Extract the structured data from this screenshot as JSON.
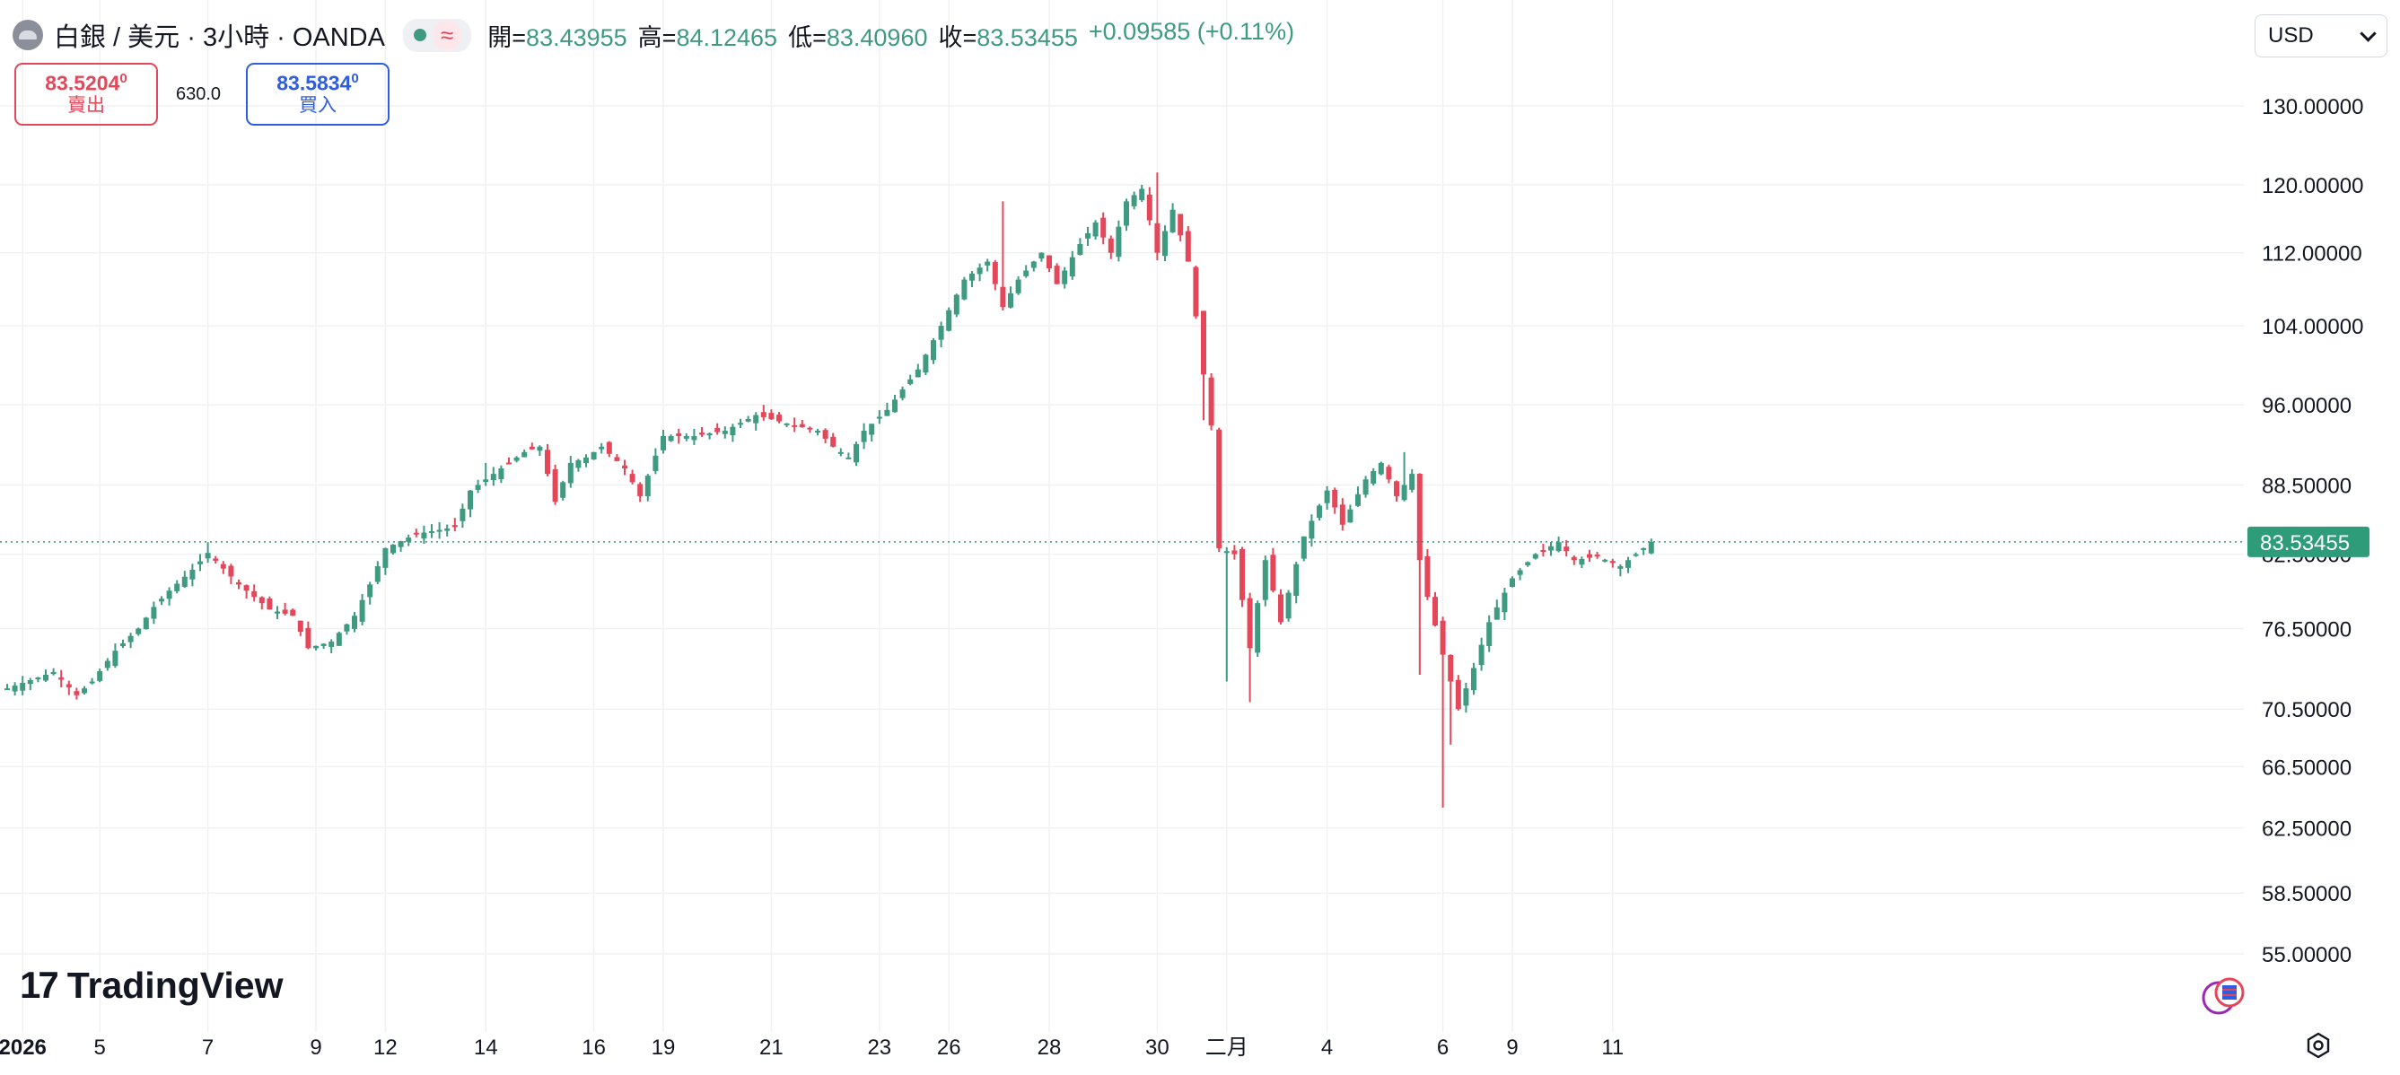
{
  "header": {
    "symbol_title": "白銀 / 美元 · 3小時 · OANDA",
    "status_icon": "market-open-dot",
    "wave_glyph": "≈",
    "ohlc": {
      "open_label": "開=",
      "open": "83.43955",
      "high_label": "高=",
      "high": "84.12465",
      "low_label": "低=",
      "low": "83.40960",
      "close_label": "收=",
      "close": "83.53455",
      "change": "+0.09585 (+0.11%)"
    }
  },
  "trade": {
    "sell_price": "83.5204",
    "sell_price_sup": "0",
    "sell_label": "賣出",
    "spread": "630.0",
    "buy_price": "83.5834",
    "buy_price_sup": "0",
    "buy_label": "買入"
  },
  "currency": {
    "selected": "USD"
  },
  "branding": {
    "logo_text": "TradingView"
  },
  "colors": {
    "up": "#3e9a80",
    "down": "#e5475a",
    "grid": "#f0f1f3",
    "price_line": "#2f9c79"
  },
  "chart_data": {
    "type": "candlestick",
    "series_name": "白銀 / 美元",
    "interval": "3小時",
    "last_price": 83.53455,
    "last_price_label": "83.53455",
    "scale": "log",
    "ylim": [
      52.5,
      136
    ],
    "ytick_values": [
      130,
      120,
      112,
      104,
      96,
      88.5,
      82.5,
      76.5,
      70.5,
      66.5,
      62.5,
      58.5,
      55
    ],
    "yticks": [
      "130.00000",
      "120.00000",
      "112.00000",
      "104.00000",
      "96.00000",
      "88.50000",
      "82.50000",
      "76.50000",
      "70.50000",
      "66.50000",
      "62.50000",
      "58.50000",
      "55.00000"
    ],
    "xticks": [
      {
        "label": "2026",
        "bar": 2,
        "bold": true
      },
      {
        "label": "5",
        "bar": 12
      },
      {
        "label": "7",
        "bar": 26
      },
      {
        "label": "9",
        "bar": 40
      },
      {
        "label": "12",
        "bar": 49
      },
      {
        "label": "14",
        "bar": 62
      },
      {
        "label": "16",
        "bar": 76
      },
      {
        "label": "19",
        "bar": 85
      },
      {
        "label": "21",
        "bar": 99
      },
      {
        "label": "23",
        "bar": 113
      },
      {
        "label": "26",
        "bar": 122
      },
      {
        "label": "28",
        "bar": 135
      },
      {
        "label": "30",
        "bar": 149
      },
      {
        "label": "二月",
        "bar": 158
      },
      {
        "label": "4",
        "bar": 171
      },
      {
        "label": "6",
        "bar": 186
      },
      {
        "label": "9",
        "bar": 195
      },
      {
        "label": "11",
        "bar": 208
      }
    ],
    "grid": true,
    "anchors": [
      [
        0,
        72.0
      ],
      [
        6,
        73.2
      ],
      [
        9,
        71.5
      ],
      [
        11,
        72.5
      ],
      [
        14,
        74.8
      ],
      [
        17,
        76.5
      ],
      [
        19,
        78.2
      ],
      [
        21,
        79.5
      ],
      [
        24,
        81.2
      ],
      [
        26,
        82.6
      ],
      [
        30,
        80.0
      ],
      [
        34,
        78.0
      ],
      [
        37,
        77.5
      ],
      [
        39,
        75.0
      ],
      [
        42,
        75.5
      ],
      [
        45,
        77.5
      ],
      [
        47,
        80.0
      ],
      [
        49,
        83.0
      ],
      [
        53,
        84.2
      ],
      [
        58,
        84.8
      ],
      [
        60,
        88.0
      ],
      [
        63,
        89.5
      ],
      [
        67,
        91.5
      ],
      [
        69,
        92.0
      ],
      [
        71,
        87.0
      ],
      [
        73,
        90.5
      ],
      [
        75,
        91.0
      ],
      [
        77,
        92.0
      ],
      [
        80,
        90.0
      ],
      [
        82,
        87.5
      ],
      [
        85,
        93.0
      ],
      [
        89,
        93.0
      ],
      [
        93,
        93.5
      ],
      [
        97,
        95.0
      ],
      [
        102,
        94.0
      ],
      [
        105,
        93.5
      ],
      [
        107,
        92.0
      ],
      [
        109,
        91.0
      ],
      [
        111,
        93.5
      ],
      [
        114,
        95.5
      ],
      [
        118,
        99.5
      ],
      [
        121,
        104.0
      ],
      [
        124,
        109.0
      ],
      [
        127,
        111.0
      ],
      [
        129,
        106.0
      ],
      [
        131,
        109.0
      ],
      [
        134,
        112.0
      ],
      [
        136,
        108.5
      ],
      [
        139,
        113.0
      ],
      [
        141,
        115.5
      ],
      [
        143,
        112.0
      ],
      [
        145,
        118.0
      ],
      [
        147,
        119.5
      ],
      [
        149,
        112.0
      ],
      [
        151,
        117.0
      ],
      [
        153,
        111.0
      ],
      [
        155,
        99.0
      ],
      [
        156,
        94.0
      ],
      [
        157,
        83.0
      ],
      [
        159,
        82.5
      ],
      [
        161,
        75.0
      ],
      [
        163,
        82.0
      ],
      [
        165,
        77.0
      ],
      [
        168,
        84.0
      ],
      [
        171,
        88.0
      ],
      [
        173,
        85.0
      ],
      [
        176,
        89.0
      ],
      [
        178,
        90.5
      ],
      [
        180,
        87.5
      ],
      [
        182,
        89.5
      ],
      [
        183,
        82.0
      ],
      [
        184,
        79.0
      ],
      [
        186,
        74.5
      ],
      [
        187,
        72.5
      ],
      [
        188,
        70.5
      ],
      [
        190,
        73.5
      ],
      [
        192,
        77.0
      ],
      [
        195,
        80.5
      ],
      [
        198,
        82.5
      ],
      [
        201,
        83.5
      ],
      [
        203,
        82.0
      ],
      [
        206,
        82.3
      ],
      [
        209,
        81.5
      ],
      [
        212,
        83.0
      ],
      [
        213,
        83.53455
      ]
    ],
    "events": [
      {
        "bar": 26,
        "high": 83.5
      },
      {
        "bar": 62,
        "high": 90.5
      },
      {
        "bar": 129,
        "high": 118.0
      },
      {
        "bar": 149,
        "high": 121.5
      },
      {
        "bar": 158,
        "low": 72.5
      },
      {
        "bar": 161,
        "low": 71.0
      },
      {
        "bar": 181,
        "high": 91.5
      },
      {
        "bar": 183,
        "low": 73.0
      },
      {
        "bar": 186,
        "low": 63.8
      },
      {
        "bar": 187,
        "low": 68.0
      },
      {
        "bar": 155,
        "low": 94.5
      }
    ]
  }
}
